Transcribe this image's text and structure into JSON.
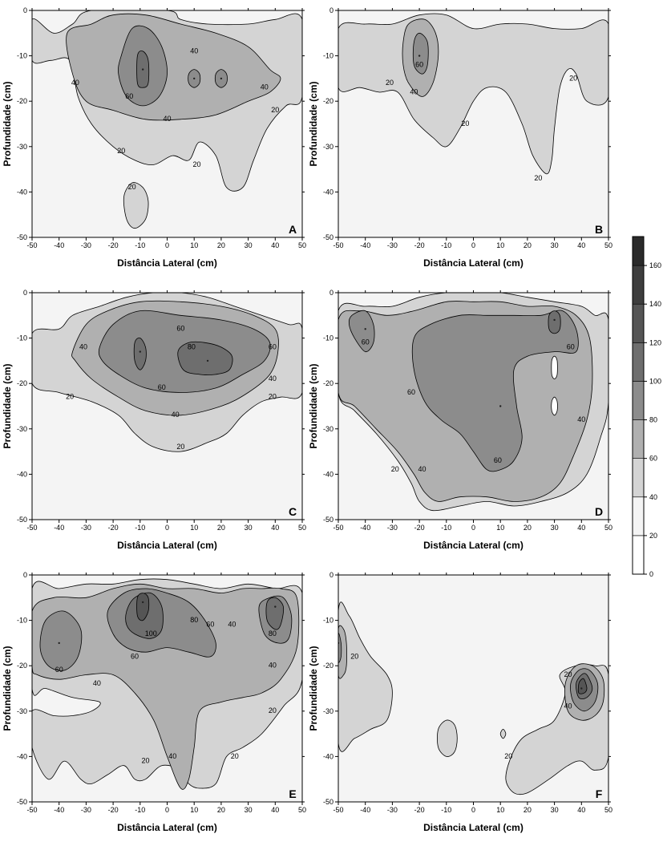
{
  "chart_data": [
    {
      "type": "heatmap",
      "panel_label": "A",
      "xlabel": "Distância Lateral (cm)",
      "ylabel": "Profundidade (cm)",
      "xlim": [
        -50,
        50
      ],
      "ylim": [
        -50,
        0
      ],
      "x_ticks": [
        -50,
        -40,
        -30,
        -20,
        -10,
        0,
        10,
        20,
        30,
        40,
        50
      ],
      "y_ticks": [
        0,
        -10,
        -20,
        -30,
        -40,
        -50
      ],
      "contour_levels": [
        20,
        40,
        60
      ],
      "contour_labels": [
        {
          "text": "40",
          "x": 10,
          "y": -9
        },
        {
          "text": "40",
          "x": -34,
          "y": -16
        },
        {
          "text": "60",
          "x": -14,
          "y": -19
        },
        {
          "text": "40",
          "x": 0,
          "y": -24
        },
        {
          "text": "40",
          "x": 36,
          "y": -17
        },
        {
          "text": "20",
          "x": 40,
          "y": -22
        },
        {
          "text": "20",
          "x": -17,
          "y": -31
        },
        {
          "text": "20",
          "x": 11,
          "y": -34
        },
        {
          "text": "20",
          "x": -13,
          "y": -39
        }
      ],
      "peaks": [
        {
          "x": -9,
          "y": -13,
          "value": 110
        },
        {
          "x": 10,
          "y": -15,
          "value": 70
        },
        {
          "x": 20,
          "y": -15,
          "value": 70
        }
      ]
    },
    {
      "type": "heatmap",
      "panel_label": "B",
      "xlabel": "Distância Lateral (cm)",
      "ylabel": "Profundidade (cm)",
      "xlim": [
        -50,
        50
      ],
      "ylim": [
        -50,
        0
      ],
      "x_ticks": [
        -50,
        -40,
        -30,
        -20,
        -10,
        0,
        10,
        20,
        30,
        40,
        50
      ],
      "y_ticks": [
        0,
        -10,
        -20,
        -30,
        -40,
        -50
      ],
      "contour_levels": [
        20,
        40,
        60
      ],
      "contour_labels": [
        {
          "text": "60",
          "x": -20,
          "y": -12
        },
        {
          "text": "40",
          "x": -22,
          "y": -18
        },
        {
          "text": "20",
          "x": -31,
          "y": -16
        },
        {
          "text": "20",
          "x": 37,
          "y": -15
        },
        {
          "text": "20",
          "x": -3,
          "y": -25
        },
        {
          "text": "20",
          "x": 24,
          "y": -37
        }
      ],
      "peaks": [
        {
          "x": -20,
          "y": -10,
          "value": 80
        }
      ]
    },
    {
      "type": "heatmap",
      "panel_label": "C",
      "xlabel": "Distância Lateral (cm)",
      "ylabel": "Profundidade (cm)",
      "xlim": [
        -50,
        50
      ],
      "ylim": [
        -50,
        0
      ],
      "x_ticks": [
        -50,
        -40,
        -30,
        -20,
        -10,
        0,
        10,
        20,
        30,
        40,
        50
      ],
      "y_ticks": [
        0,
        -10,
        -20,
        -30,
        -40,
        -50
      ],
      "contour_levels": [
        20,
        40,
        60,
        80
      ],
      "contour_labels": [
        {
          "text": "60",
          "x": 5,
          "y": -8
        },
        {
          "text": "40",
          "x": -31,
          "y": -12
        },
        {
          "text": "80",
          "x": 9,
          "y": -12
        },
        {
          "text": "60",
          "x": 39,
          "y": -12
        },
        {
          "text": "60",
          "x": -2,
          "y": -21
        },
        {
          "text": "40",
          "x": 39,
          "y": -19
        },
        {
          "text": "20",
          "x": -36,
          "y": -23
        },
        {
          "text": "20",
          "x": 39,
          "y": -23
        },
        {
          "text": "40",
          "x": 3,
          "y": -27
        },
        {
          "text": "20",
          "x": 5,
          "y": -34
        }
      ],
      "peaks": [
        {
          "x": -10,
          "y": -13,
          "value": 90
        },
        {
          "x": 15,
          "y": -15,
          "value": 95
        }
      ]
    },
    {
      "type": "heatmap",
      "panel_label": "D",
      "xlabel": "Distância Lateral (cm)",
      "ylabel": "Profundidade (cm)",
      "xlim": [
        -50,
        50
      ],
      "ylim": [
        -50,
        0
      ],
      "x_ticks": [
        -50,
        -40,
        -30,
        -20,
        -10,
        0,
        10,
        20,
        30,
        40,
        50
      ],
      "y_ticks": [
        0,
        -10,
        -20,
        -30,
        -40,
        -50
      ],
      "contour_levels": [
        20,
        40,
        60,
        80
      ],
      "contour_labels": [
        {
          "text": "60",
          "x": -40,
          "y": -11
        },
        {
          "text": "60",
          "x": 36,
          "y": -12
        },
        {
          "text": "60",
          "x": -23,
          "y": -22
        },
        {
          "text": "40",
          "x": 40,
          "y": -28
        },
        {
          "text": "20",
          "x": -29,
          "y": -39
        },
        {
          "text": "40",
          "x": -19,
          "y": -39
        },
        {
          "text": "60",
          "x": 9,
          "y": -37
        }
      ],
      "peaks": [
        {
          "x": -40,
          "y": -8,
          "value": 85
        },
        {
          "x": 30,
          "y": -6,
          "value": 100
        },
        {
          "x": 10,
          "y": -25,
          "value": 80
        }
      ]
    },
    {
      "type": "heatmap",
      "panel_label": "E",
      "xlabel": "Distância Lateral (cm)",
      "ylabel": "Profundidade (cm)",
      "xlim": [
        -50,
        50
      ],
      "ylim": [
        -50,
        0
      ],
      "x_ticks": [
        -50,
        -40,
        -30,
        -20,
        -10,
        0,
        10,
        20,
        30,
        40,
        50
      ],
      "y_ticks": [
        0,
        -10,
        -20,
        -30,
        -40,
        -50
      ],
      "contour_levels": [
        20,
        40,
        60,
        80,
        100
      ],
      "contour_labels": [
        {
          "text": "100",
          "x": -6,
          "y": -13
        },
        {
          "text": "80",
          "x": 10,
          "y": -10
        },
        {
          "text": "60",
          "x": 16,
          "y": -11
        },
        {
          "text": "40",
          "x": 24,
          "y": -11
        },
        {
          "text": "80",
          "x": 39,
          "y": -13
        },
        {
          "text": "60",
          "x": -12,
          "y": -18
        },
        {
          "text": "40",
          "x": 39,
          "y": -20
        },
        {
          "text": "60",
          "x": -40,
          "y": -21
        },
        {
          "text": "40",
          "x": -26,
          "y": -24
        },
        {
          "text": "20",
          "x": 39,
          "y": -30
        },
        {
          "text": "20",
          "x": -8,
          "y": -41
        },
        {
          "text": "40",
          "x": 2,
          "y": -40
        },
        {
          "text": "20",
          "x": 25,
          "y": -40
        }
      ],
      "peaks": [
        {
          "x": -9,
          "y": -6,
          "value": 130
        },
        {
          "x": 40,
          "y": -7,
          "value": 100
        },
        {
          "x": -40,
          "y": -15,
          "value": 80
        }
      ]
    },
    {
      "type": "heatmap",
      "panel_label": "F",
      "xlabel": "Distância Lateral (cm)",
      "ylabel": "Profundidade (cm)",
      "xlim": [
        -50,
        50
      ],
      "ylim": [
        -50,
        0
      ],
      "x_ticks": [
        -50,
        -40,
        -30,
        -20,
        -10,
        0,
        10,
        20,
        30,
        40,
        50
      ],
      "y_ticks": [
        0,
        -10,
        -20,
        -30,
        -40,
        -50
      ],
      "contour_levels": [
        20,
        40,
        60,
        80,
        100
      ],
      "contour_labels": [
        {
          "text": "20",
          "x": -44,
          "y": -18
        },
        {
          "text": "20",
          "x": 35,
          "y": -22
        },
        {
          "text": "40",
          "x": 35,
          "y": -29
        },
        {
          "text": "20",
          "x": 13,
          "y": -40
        }
      ],
      "peaks": [
        {
          "x": -50,
          "y": -15,
          "value": 90
        },
        {
          "x": 40,
          "y": -25,
          "value": 120
        }
      ]
    }
  ],
  "colorbar": {
    "ticks": [
      0,
      20,
      40,
      60,
      80,
      100,
      120,
      140,
      160
    ],
    "max": 175,
    "colors": {
      "0": "#ffffff",
      "20": "#f4f4f4",
      "40": "#d4d4d4",
      "60": "#b0b0b0",
      "80": "#8c8c8c",
      "100": "#6e6e6e",
      "120": "#555555",
      "140": "#3e3e3e",
      "160": "#2a2a2a"
    }
  }
}
